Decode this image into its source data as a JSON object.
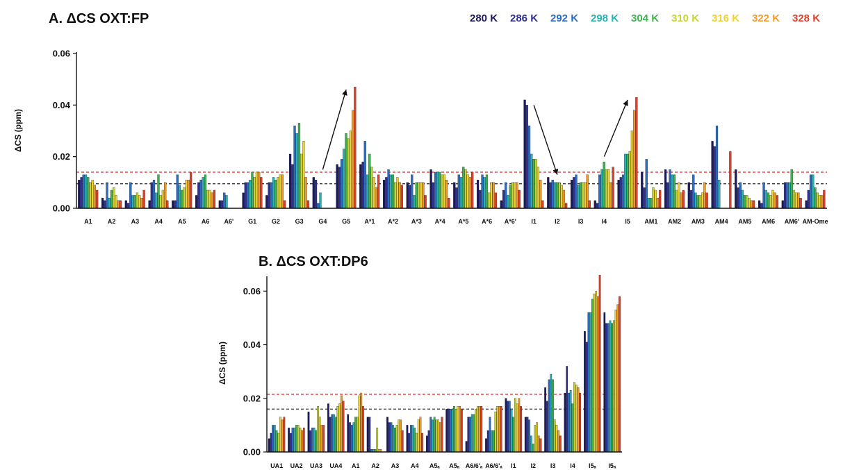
{
  "legend": {
    "entries": [
      {
        "label": "280 K",
        "color": "#1c1a5e"
      },
      {
        "label": "286 K",
        "color": "#2e3192"
      },
      {
        "label": "292 K",
        "color": "#2b6cc4"
      },
      {
        "label": "298 K",
        "color": "#27b3b5"
      },
      {
        "label": "304 K",
        "color": "#3fb34f"
      },
      {
        "label": "310 K",
        "color": "#c6d531"
      },
      {
        "label": "316 K",
        "color": "#f2d22e"
      },
      {
        "label": "322 K",
        "color": "#f39c2b"
      },
      {
        "label": "328 K",
        "color": "#e0402a"
      }
    ]
  },
  "chart_data": [
    {
      "panel_title": "A. ΔCS OXT:FP",
      "type": "bar",
      "ylabel": "ΔCS (ppm)",
      "ylim": [
        0,
        0.06
      ],
      "yticks": [
        "0.00",
        "0.02",
        "0.04",
        "0.06"
      ],
      "reference_lines": [
        {
          "color": "#e02020",
          "value": 0.014
        },
        {
          "color": "#333333",
          "value": 0.0095
        }
      ],
      "arrows": [
        {
          "from": [
            "G4",
            0.015
          ],
          "to": [
            "G5",
            0.046
          ]
        },
        {
          "from": [
            "I1",
            0.04
          ],
          "to": [
            "I2",
            0.013
          ]
        },
        {
          "from": [
            "I4",
            0.02
          ],
          "to": [
            "I5",
            0.042
          ]
        }
      ],
      "categories": [
        "A1",
        "A2",
        "A3",
        "A4",
        "A5",
        "A6",
        "A6'",
        "G1",
        "G2",
        "G3",
        "G4",
        "G5",
        "A*1",
        "A*2",
        "A*3",
        "A*4",
        "A*5",
        "A*6",
        "A*6'",
        "I1",
        "I2",
        "I3",
        "I4",
        "I5",
        "AM1",
        "AM2",
        "AM3",
        "AM4",
        "AM5",
        "AM6",
        "AM6'",
        "AM-Ome"
      ],
      "series": [
        {
          "name": "280 K",
          "values": [
            0.011,
            0.004,
            0.003,
            0.003,
            0.003,
            0.005,
            0.003,
            0.006,
            0.005,
            0.021,
            0.012,
            0.017,
            0.017,
            0.011,
            0.01,
            0.015,
            0.01,
            0.011,
            0.003,
            0.042,
            0.012,
            0.011,
            0.003,
            0.011,
            0.014,
            0.015,
            0.01,
            0.026,
            0.015,
            0.003,
            0.003,
            0.003
          ]
        },
        {
          "name": "286 K",
          "values": [
            0.012,
            0.003,
            0.002,
            0.01,
            0.003,
            0.01,
            0.003,
            0.01,
            0.01,
            0.017,
            0.011,
            0.016,
            0.018,
            0.012,
            0.009,
            0.01,
            0.008,
            0.007,
            0.007,
            0.04,
            0.01,
            0.012,
            0.002,
            0.012,
            0.008,
            0.01,
            0.007,
            0.024,
            0.008,
            0.002,
            0.01,
            0.007
          ]
        },
        {
          "name": "292 K",
          "values": [
            0.013,
            0.01,
            0.01,
            0.011,
            0.013,
            0.011,
            0.006,
            0.01,
            0.01,
            0.032,
            0.002,
            0.019,
            0.026,
            0.015,
            0.013,
            0.014,
            0.013,
            0.013,
            0.01,
            0.032,
            0.011,
            0.013,
            0.013,
            0.013,
            0.019,
            0.015,
            0.013,
            0.032,
            0.01,
            0.01,
            0.01,
            0.013
          ]
        },
        {
          "name": "298 K",
          "values": [
            0.013,
            0.004,
            0.005,
            0.006,
            0.009,
            0.012,
            0.005,
            0.011,
            0.012,
            0.029,
            0.006,
            0.023,
            0.013,
            0.013,
            0.005,
            0.014,
            0.012,
            0.012,
            0.005,
            0.021,
            0.01,
            0.009,
            0.015,
            0.021,
            0.004,
            0.013,
            0.006,
            0.011,
            0.007,
            0.007,
            0.01,
            0.013
          ]
        },
        {
          "name": "304 K",
          "values": [
            0.012,
            0.007,
            0.005,
            0.013,
            0.007,
            0.013,
            0.0,
            0.014,
            0.011,
            0.033,
            0.0,
            0.029,
            0.021,
            0.013,
            0.01,
            0.014,
            0.016,
            0.013,
            0.009,
            0.019,
            0.01,
            0.01,
            0.018,
            0.021,
            0.004,
            0.013,
            0.005,
            0.0,
            0.005,
            0.006,
            0.015,
            0.008
          ]
        },
        {
          "name": "310 K",
          "values": [
            0.01,
            0.008,
            0.006,
            0.005,
            0.008,
            0.007,
            0.0,
            0.012,
            0.012,
            0.021,
            0.0,
            0.027,
            0.016,
            0.01,
            0.01,
            0.013,
            0.015,
            0.006,
            0.01,
            0.019,
            0.01,
            0.01,
            0.015,
            0.022,
            0.008,
            0.007,
            0.005,
            0.0,
            0.005,
            0.005,
            0.007,
            0.006
          ]
        },
        {
          "name": "316 K",
          "values": [
            0.011,
            0.005,
            0.005,
            0.007,
            0.011,
            0.007,
            0.0,
            0.014,
            0.013,
            0.026,
            0.0,
            0.03,
            0.012,
            0.012,
            0.01,
            0.013,
            0.013,
            0.01,
            0.01,
            0.016,
            0.009,
            0.01,
            0.015,
            0.03,
            0.007,
            0.01,
            0.006,
            0.0,
            0.004,
            0.007,
            0.006,
            0.005
          ]
        },
        {
          "name": "322 K",
          "values": [
            0.009,
            0.003,
            0.004,
            0.01,
            0.011,
            0.006,
            0.0,
            0.014,
            0.013,
            0.012,
            0.0,
            0.038,
            0.008,
            0.01,
            0.01,
            0.011,
            0.012,
            0.01,
            0.01,
            0.011,
            0.007,
            0.013,
            0.01,
            0.038,
            0.004,
            0.006,
            0.01,
            0.0,
            0.003,
            0.006,
            0.006,
            0.005
          ]
        },
        {
          "name": "328 K",
          "values": [
            0.007,
            0.003,
            0.007,
            0.003,
            0.014,
            0.007,
            0.0,
            0.012,
            0.003,
            0.003,
            0.0,
            0.047,
            0.013,
            0.009,
            0.005,
            0.004,
            0.014,
            0.006,
            0.007,
            0.003,
            0.002,
            0.003,
            0.016,
            0.043,
            0.007,
            0.007,
            0.006,
            0.022,
            0.003,
            0.005,
            0.004,
            0.007
          ]
        }
      ]
    },
    {
      "panel_title": "B. ΔCS OXT:DP6",
      "type": "bar",
      "ylabel": "ΔCS (ppm)",
      "ylim": [
        0,
        0.065
      ],
      "yticks": [
        "0.00",
        "0.02",
        "0.04",
        "0.06"
      ],
      "reference_lines": [
        {
          "color": "#e02020",
          "value": 0.0215
        },
        {
          "color": "#333333",
          "value": 0.016
        }
      ],
      "categories": [
        "UA1",
        "UA2",
        "UA3",
        "UA4",
        "A1",
        "A2",
        "A3",
        "A4",
        "A5ₐ",
        "A5ₐ",
        "A6/6'ₐ",
        "A6/6'ₐ",
        "I1",
        "I2",
        "I3",
        "I4",
        "I5ₐ",
        "I5ₐ"
      ],
      "series": [
        {
          "name": "280 K",
          "values": [
            0.005,
            0.009,
            0.015,
            0.018,
            0.014,
            0.013,
            0.013,
            0.01,
            0.006,
            0.016,
            0.004,
            0.005,
            0.02,
            0.013,
            0.024,
            0.022,
            0.045,
            0.052
          ]
        },
        {
          "name": "286 K",
          "values": [
            0.007,
            0.007,
            0.008,
            0.013,
            0.011,
            0.013,
            0.011,
            0.007,
            0.008,
            0.016,
            0.013,
            0.008,
            0.019,
            0.013,
            0.019,
            0.032,
            0.041,
            0.048
          ]
        },
        {
          "name": "292 K",
          "values": [
            0.01,
            0.009,
            0.009,
            0.014,
            0.01,
            0.001,
            0.011,
            0.01,
            0.013,
            0.016,
            0.013,
            0.013,
            0.019,
            0.012,
            0.027,
            0.022,
            0.052,
            0.048
          ]
        },
        {
          "name": "298 K",
          "values": [
            0.01,
            0.009,
            0.009,
            0.014,
            0.011,
            0.001,
            0.01,
            0.01,
            0.012,
            0.016,
            0.014,
            0.008,
            0.016,
            0.006,
            0.029,
            0.023,
            0.052,
            0.049
          ]
        },
        {
          "name": "304 K",
          "values": [
            0.008,
            0.01,
            0.008,
            0.013,
            0.013,
            0.001,
            0.009,
            0.009,
            0.013,
            0.017,
            0.014,
            0.008,
            0.013,
            0.003,
            0.027,
            0.018,
            0.057,
            0.048
          ]
        },
        {
          "name": "310 K",
          "values": [
            0.007,
            0.01,
            0.017,
            0.017,
            0.013,
            0.009,
            0.01,
            0.007,
            0.012,
            0.016,
            0.016,
            0.015,
            0.02,
            0.01,
            0.012,
            0.026,
            0.059,
            0.049
          ]
        },
        {
          "name": "316 K",
          "values": [
            0.013,
            0.009,
            0.013,
            0.018,
            0.021,
            0.001,
            0.012,
            0.012,
            0.012,
            0.017,
            0.017,
            0.017,
            0.018,
            0.011,
            0.01,
            0.025,
            0.06,
            0.053
          ]
        },
        {
          "name": "322 K",
          "values": [
            0.012,
            0.008,
            0.01,
            0.021,
            0.022,
            0.001,
            0.012,
            0.013,
            0.011,
            0.017,
            0.017,
            0.017,
            0.02,
            0.006,
            0.008,
            0.024,
            0.058,
            0.055
          ]
        },
        {
          "name": "328 K",
          "values": [
            0.013,
            0.009,
            0.01,
            0.019,
            0.017,
            0.0,
            0.008,
            0.007,
            0.013,
            0.016,
            0.017,
            0.017,
            0.017,
            0.005,
            0.006,
            0.022,
            0.066,
            0.058
          ]
        }
      ]
    }
  ]
}
